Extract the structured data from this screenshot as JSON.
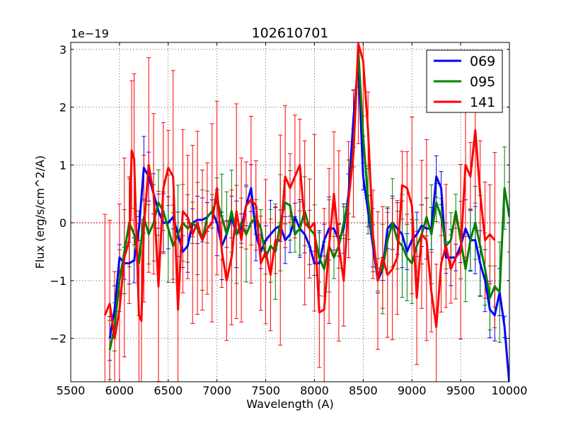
{
  "chart_data": {
    "type": "line",
    "title": "102610701",
    "xlabel": "Wavelength (A)",
    "ylabel": "Flux (erg/s/cm^2/A)",
    "y_scale_label": "1e−19",
    "xlim": [
      5500,
      10000
    ],
    "ylim": [
      -2.75,
      3.12
    ],
    "xticks": [
      5500,
      6000,
      6500,
      7000,
      7500,
      8000,
      8500,
      9000,
      9500,
      10000
    ],
    "xtick_labels": [
      "5500",
      "6000",
      "6500",
      "7000",
      "7500",
      "8000",
      "8500",
      "9000",
      "9500",
      "10000"
    ],
    "yticks": [
      -2,
      -1,
      0,
      1,
      2,
      3
    ],
    "ytick_labels": [
      "−2",
      "−1",
      "0",
      "1",
      "2",
      "3"
    ],
    "grid": true,
    "legend_position": "top-right",
    "series": [
      {
        "name": "069",
        "color": "#0000ff",
        "x": [
          5900,
          5950,
          6000,
          6050,
          6100,
          6150,
          6200,
          6250,
          6300,
          6350,
          6400,
          6450,
          6500,
          6550,
          6600,
          6650,
          6700,
          6750,
          6800,
          6850,
          6900,
          6950,
          7000,
          7050,
          7100,
          7150,
          7200,
          7250,
          7300,
          7350,
          7400,
          7450,
          7500,
          7550,
          7600,
          7650,
          7700,
          7750,
          7800,
          7850,
          7900,
          7950,
          8000,
          8050,
          8100,
          8150,
          8200,
          8250,
          8300,
          8350,
          8400,
          8450,
          8500,
          8550,
          8600,
          8650,
          8700,
          8750,
          8800,
          8850,
          8900,
          8950,
          9000,
          9050,
          9100,
          9150,
          9200,
          9250,
          9300,
          9350,
          9400,
          9450,
          9500,
          9550,
          9600,
          9650,
          9700,
          9750,
          9800,
          9850,
          9900,
          9950,
          10000
        ],
        "y": [
          -2.0,
          -1.5,
          -0.6,
          -0.7,
          -0.7,
          -0.65,
          -0.1,
          0.95,
          0.8,
          0.5,
          0.2,
          0.0,
          0.0,
          0.1,
          -0.2,
          -0.5,
          -0.4,
          0.0,
          0.05,
          0.05,
          0.1,
          0.2,
          0.0,
          -0.4,
          -0.2,
          0.1,
          -0.2,
          -0.1,
          0.3,
          0.6,
          -0.2,
          -0.5,
          -0.3,
          -0.2,
          -0.1,
          -0.05,
          -0.3,
          -0.2,
          0.1,
          -0.1,
          -0.2,
          -0.4,
          -0.7,
          -0.7,
          -0.3,
          -0.1,
          -0.1,
          -0.3,
          -0.1,
          0.5,
          1.8,
          2.8,
          0.8,
          0.2,
          -0.4,
          -1.0,
          -0.8,
          -0.1,
          0.0,
          -0.1,
          -0.2,
          -0.5,
          -0.3,
          -0.2,
          -0.05,
          -0.1,
          -0.1,
          0.8,
          0.6,
          -0.6,
          -0.6,
          -0.6,
          -0.4,
          -0.1,
          -0.3,
          -0.3,
          -0.7,
          -1.0,
          -1.5,
          -1.6,
          -1.2,
          -1.8,
          -2.8
        ]
      },
      {
        "name": "095",
        "color": "#008000",
        "x": [
          5900,
          5950,
          6000,
          6050,
          6100,
          6150,
          6200,
          6250,
          6300,
          6350,
          6400,
          6450,
          6500,
          6550,
          6600,
          6650,
          6700,
          6750,
          6800,
          6850,
          6900,
          6950,
          7000,
          7050,
          7100,
          7150,
          7200,
          7250,
          7300,
          7350,
          7400,
          7450,
          7500,
          7550,
          7600,
          7650,
          7700,
          7750,
          7800,
          7850,
          7900,
          7950,
          8000,
          8050,
          8100,
          8150,
          8200,
          8250,
          8300,
          8350,
          8400,
          8450,
          8500,
          8550,
          8600,
          8650,
          8700,
          8750,
          8800,
          8850,
          8900,
          8950,
          9000,
          9050,
          9100,
          9150,
          9200,
          9250,
          9300,
          9350,
          9400,
          9450,
          9500,
          9550,
          9600,
          9650,
          9700,
          9750,
          9800,
          9850,
          9900,
          9950,
          10000
        ],
        "y": [
          -2.2,
          -1.8,
          -1.0,
          -0.5,
          0.0,
          -0.2,
          -0.7,
          0.1,
          -0.2,
          0.0,
          0.35,
          0.2,
          -0.1,
          -0.4,
          -0.2,
          0.0,
          -0.1,
          0.0,
          -0.1,
          -0.3,
          0.1,
          0.2,
          0.4,
          0.1,
          -0.2,
          0.2,
          -0.2,
          0.0,
          -0.2,
          0.0,
          0.1,
          -0.1,
          -0.6,
          -0.4,
          -0.5,
          0.0,
          0.35,
          0.3,
          -0.2,
          -0.1,
          0.2,
          -0.1,
          -0.2,
          -0.6,
          -0.8,
          -0.4,
          -0.6,
          -0.4,
          0.0,
          0.4,
          1.3,
          3.0,
          1.5,
          0.4,
          -0.3,
          -0.9,
          -0.8,
          -0.3,
          0.0,
          -0.3,
          -0.4,
          -0.6,
          -0.7,
          -0.4,
          -0.2,
          0.1,
          -0.2,
          0.35,
          0.1,
          -0.4,
          -0.3,
          0.2,
          -0.3,
          -0.8,
          -0.3,
          0.0,
          -0.4,
          -0.8,
          -1.3,
          -1.1,
          -1.2,
          0.6,
          0.1
        ]
      },
      {
        "name": "141",
        "color": "#ff0000",
        "x": [
          5850,
          5900,
          5950,
          6000,
          6050,
          6100,
          6125,
          6150,
          6200,
          6225,
          6250,
          6300,
          6350,
          6400,
          6450,
          6500,
          6550,
          6600,
          6650,
          6700,
          6750,
          6800,
          6850,
          6900,
          6950,
          7000,
          7050,
          7100,
          7150,
          7200,
          7250,
          7300,
          7350,
          7400,
          7450,
          7500,
          7550,
          7600,
          7650,
          7700,
          7750,
          7800,
          7850,
          7900,
          7950,
          8000,
          8050,
          8100,
          8150,
          8200,
          8250,
          8300,
          8350,
          8400,
          8450,
          8500,
          8550,
          8600,
          8650,
          8700,
          8750,
          8800,
          8850,
          8900,
          8950,
          9000,
          9050,
          9100,
          9150,
          9200,
          9250,
          9300,
          9350,
          9400,
          9450,
          9500,
          9550,
          9600,
          9650,
          9700,
          9750,
          9800,
          9850
        ],
        "y": [
          -1.6,
          -1.4,
          -2.0,
          -1.5,
          -0.6,
          -0.3,
          1.25,
          1.1,
          -1.6,
          -1.7,
          -0.1,
          1.0,
          0.5,
          -1.1,
          0.6,
          0.95,
          0.8,
          -1.5,
          0.2,
          0.1,
          -0.2,
          0.0,
          -0.3,
          -0.1,
          0.0,
          0.6,
          -0.5,
          -1.0,
          -0.6,
          0.2,
          -0.3,
          0.3,
          0.4,
          0.3,
          -0.7,
          -0.5,
          -0.9,
          -0.3,
          -0.3,
          0.8,
          0.6,
          0.8,
          1.0,
          0.0,
          -0.1,
          0.0,
          -1.55,
          -1.5,
          -0.4,
          0.5,
          -0.4,
          -1.0,
          0.4,
          1.2,
          3.1,
          2.8,
          1.6,
          -0.2,
          -1.0,
          -0.6,
          -0.9,
          -0.8,
          -0.6,
          0.65,
          0.6,
          0.3,
          -1.3,
          -0.2,
          -0.3,
          -1.2,
          -1.8,
          -0.7,
          -0.4,
          -0.8,
          -0.6,
          -0.5,
          1.0,
          0.8,
          1.6,
          0.5,
          -0.3,
          -0.2,
          -0.3
        ]
      }
    ]
  }
}
